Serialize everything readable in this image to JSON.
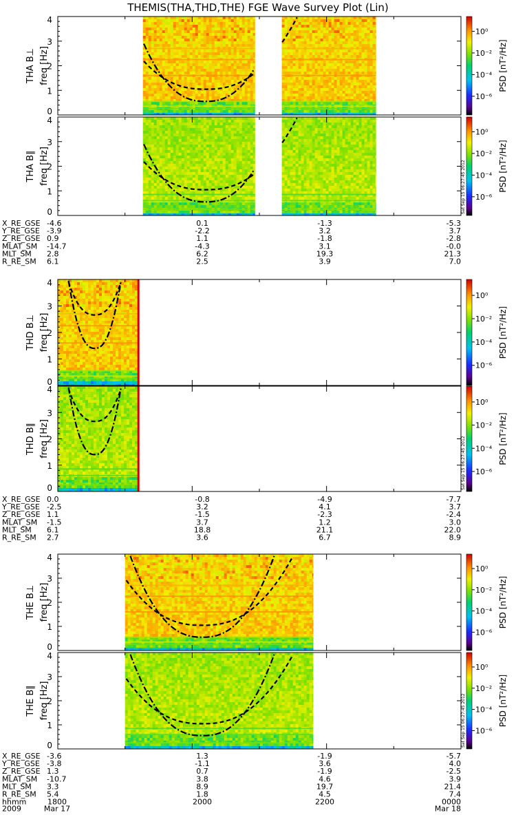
{
  "title": "THEMIS(THA,THD,THE) FGE Wave Survey Plot (Lin)",
  "colorbar": {
    "label": "PSD [nT²/Hz]",
    "ticks": [
      "10⁰",
      "10⁻²",
      "10⁻⁴",
      "10⁻⁶"
    ],
    "stamp": "Sat Sep 15 06:27:45 2012"
  },
  "yaxis": {
    "unit_label": "freq [Hz]",
    "ticks": [
      "0",
      "1",
      "2",
      "3",
      "4"
    ]
  },
  "time_axis": {
    "row_label": "hhmm",
    "ticks": [
      "1800",
      "2000",
      "2200",
      "0000"
    ],
    "date_labels": [
      "2009",
      "Mar 17",
      "Mar 18"
    ]
  },
  "chart_data": [
    {
      "type": "heatmap",
      "probe": "THA",
      "panels": [
        {
          "name": "THA B⊥",
          "ylabel": "freq [Hz]",
          "ylim": [
            0,
            4
          ]
        },
        {
          "name": "THA B∥",
          "ylabel": "freq [Hz]",
          "ylim": [
            0,
            4
          ]
        }
      ],
      "data_coverage_hhmm": [
        [
          "1916",
          "2056"
        ],
        [
          "2120",
          "2244"
        ]
      ],
      "cyclotron_curves": true,
      "ephemeris": [
        {
          "label": "X_RE_GSE",
          "values": [
            "-4.6",
            "0.1",
            "-1.3",
            "-5.3"
          ]
        },
        {
          "label": "Y_RE_GSE",
          "values": [
            "-3.9",
            "-2.2",
            "3.2",
            "3.7"
          ]
        },
        {
          "label": "Z_RE_GSE",
          "values": [
            "0.9",
            "1.1",
            "-1.8",
            "-2.8"
          ]
        },
        {
          "label": "MLAT_SM",
          "values": [
            "-14.7",
            "-4.3",
            "3.1",
            "-0.0"
          ]
        },
        {
          "label": "MLT_SM",
          "values": [
            "2.8",
            "6.2",
            "19.3",
            "21.3"
          ]
        },
        {
          "label": "R_RE_SM",
          "values": [
            "6.1",
            "2.5",
            "3.9",
            "7.0"
          ]
        }
      ]
    },
    {
      "type": "heatmap",
      "probe": "THD",
      "panels": [
        {
          "name": "THD B⊥",
          "ylabel": "freq [Hz]",
          "ylim": [
            0,
            4
          ]
        },
        {
          "name": "THD B∥",
          "ylabel": "freq [Hz]",
          "ylim": [
            0,
            4
          ]
        }
      ],
      "data_coverage_hhmm": [
        [
          "1800",
          "1912"
        ]
      ],
      "cyclotron_curves": true,
      "ephemeris": [
        {
          "label": "X_RE_GSE",
          "values": [
            "0.0",
            "-0.8",
            "-4.9",
            "-7.7"
          ]
        },
        {
          "label": "Y_RE_GSE",
          "values": [
            "-2.5",
            "3.2",
            "4.1",
            "3.7"
          ]
        },
        {
          "label": "Z_RE_GSE",
          "values": [
            "1.1",
            "-1.5",
            "-2.3",
            "-2.4"
          ]
        },
        {
          "label": "MLAT_SM",
          "values": [
            "-1.5",
            "3.7",
            "1.2",
            "3.0"
          ]
        },
        {
          "label": "MLT_SM",
          "values": [
            "6.1",
            "18.8",
            "21.1",
            "22.0"
          ]
        },
        {
          "label": "R_RE_SM",
          "values": [
            "2.7",
            "3.6",
            "6.7",
            "8.9"
          ]
        }
      ]
    },
    {
      "type": "heatmap",
      "probe": "THE",
      "panels": [
        {
          "name": "THE B⊥",
          "ylabel": "freq [Hz]",
          "ylim": [
            0,
            4
          ]
        },
        {
          "name": "THE B∥",
          "ylabel": "freq [Hz]",
          "ylim": [
            0,
            4
          ]
        }
      ],
      "data_coverage_hhmm": [
        [
          "1900",
          "2148"
        ]
      ],
      "cyclotron_curves": true,
      "ephemeris": [
        {
          "label": "X_RE_GSE",
          "values": [
            "-3.6",
            "1.3",
            "-1.9",
            "-5.7"
          ]
        },
        {
          "label": "Y_RE_GSE",
          "values": [
            "-3.8",
            "-1.1",
            "3.6",
            "4.0"
          ]
        },
        {
          "label": "Z_RE_GSE",
          "values": [
            "1.3",
            "0.7",
            "-1.9",
            "-2.5"
          ]
        },
        {
          "label": "MLAT_SM",
          "values": [
            "-10.7",
            "3.8",
            "4.6",
            "3.9"
          ]
        },
        {
          "label": "MLT_SM",
          "values": [
            "3.3",
            "8.9",
            "19.7",
            "21.4"
          ]
        },
        {
          "label": "R_RE_SM",
          "values": [
            "5.4",
            "1.8",
            "4.5",
            "7.4"
          ]
        }
      ]
    }
  ]
}
